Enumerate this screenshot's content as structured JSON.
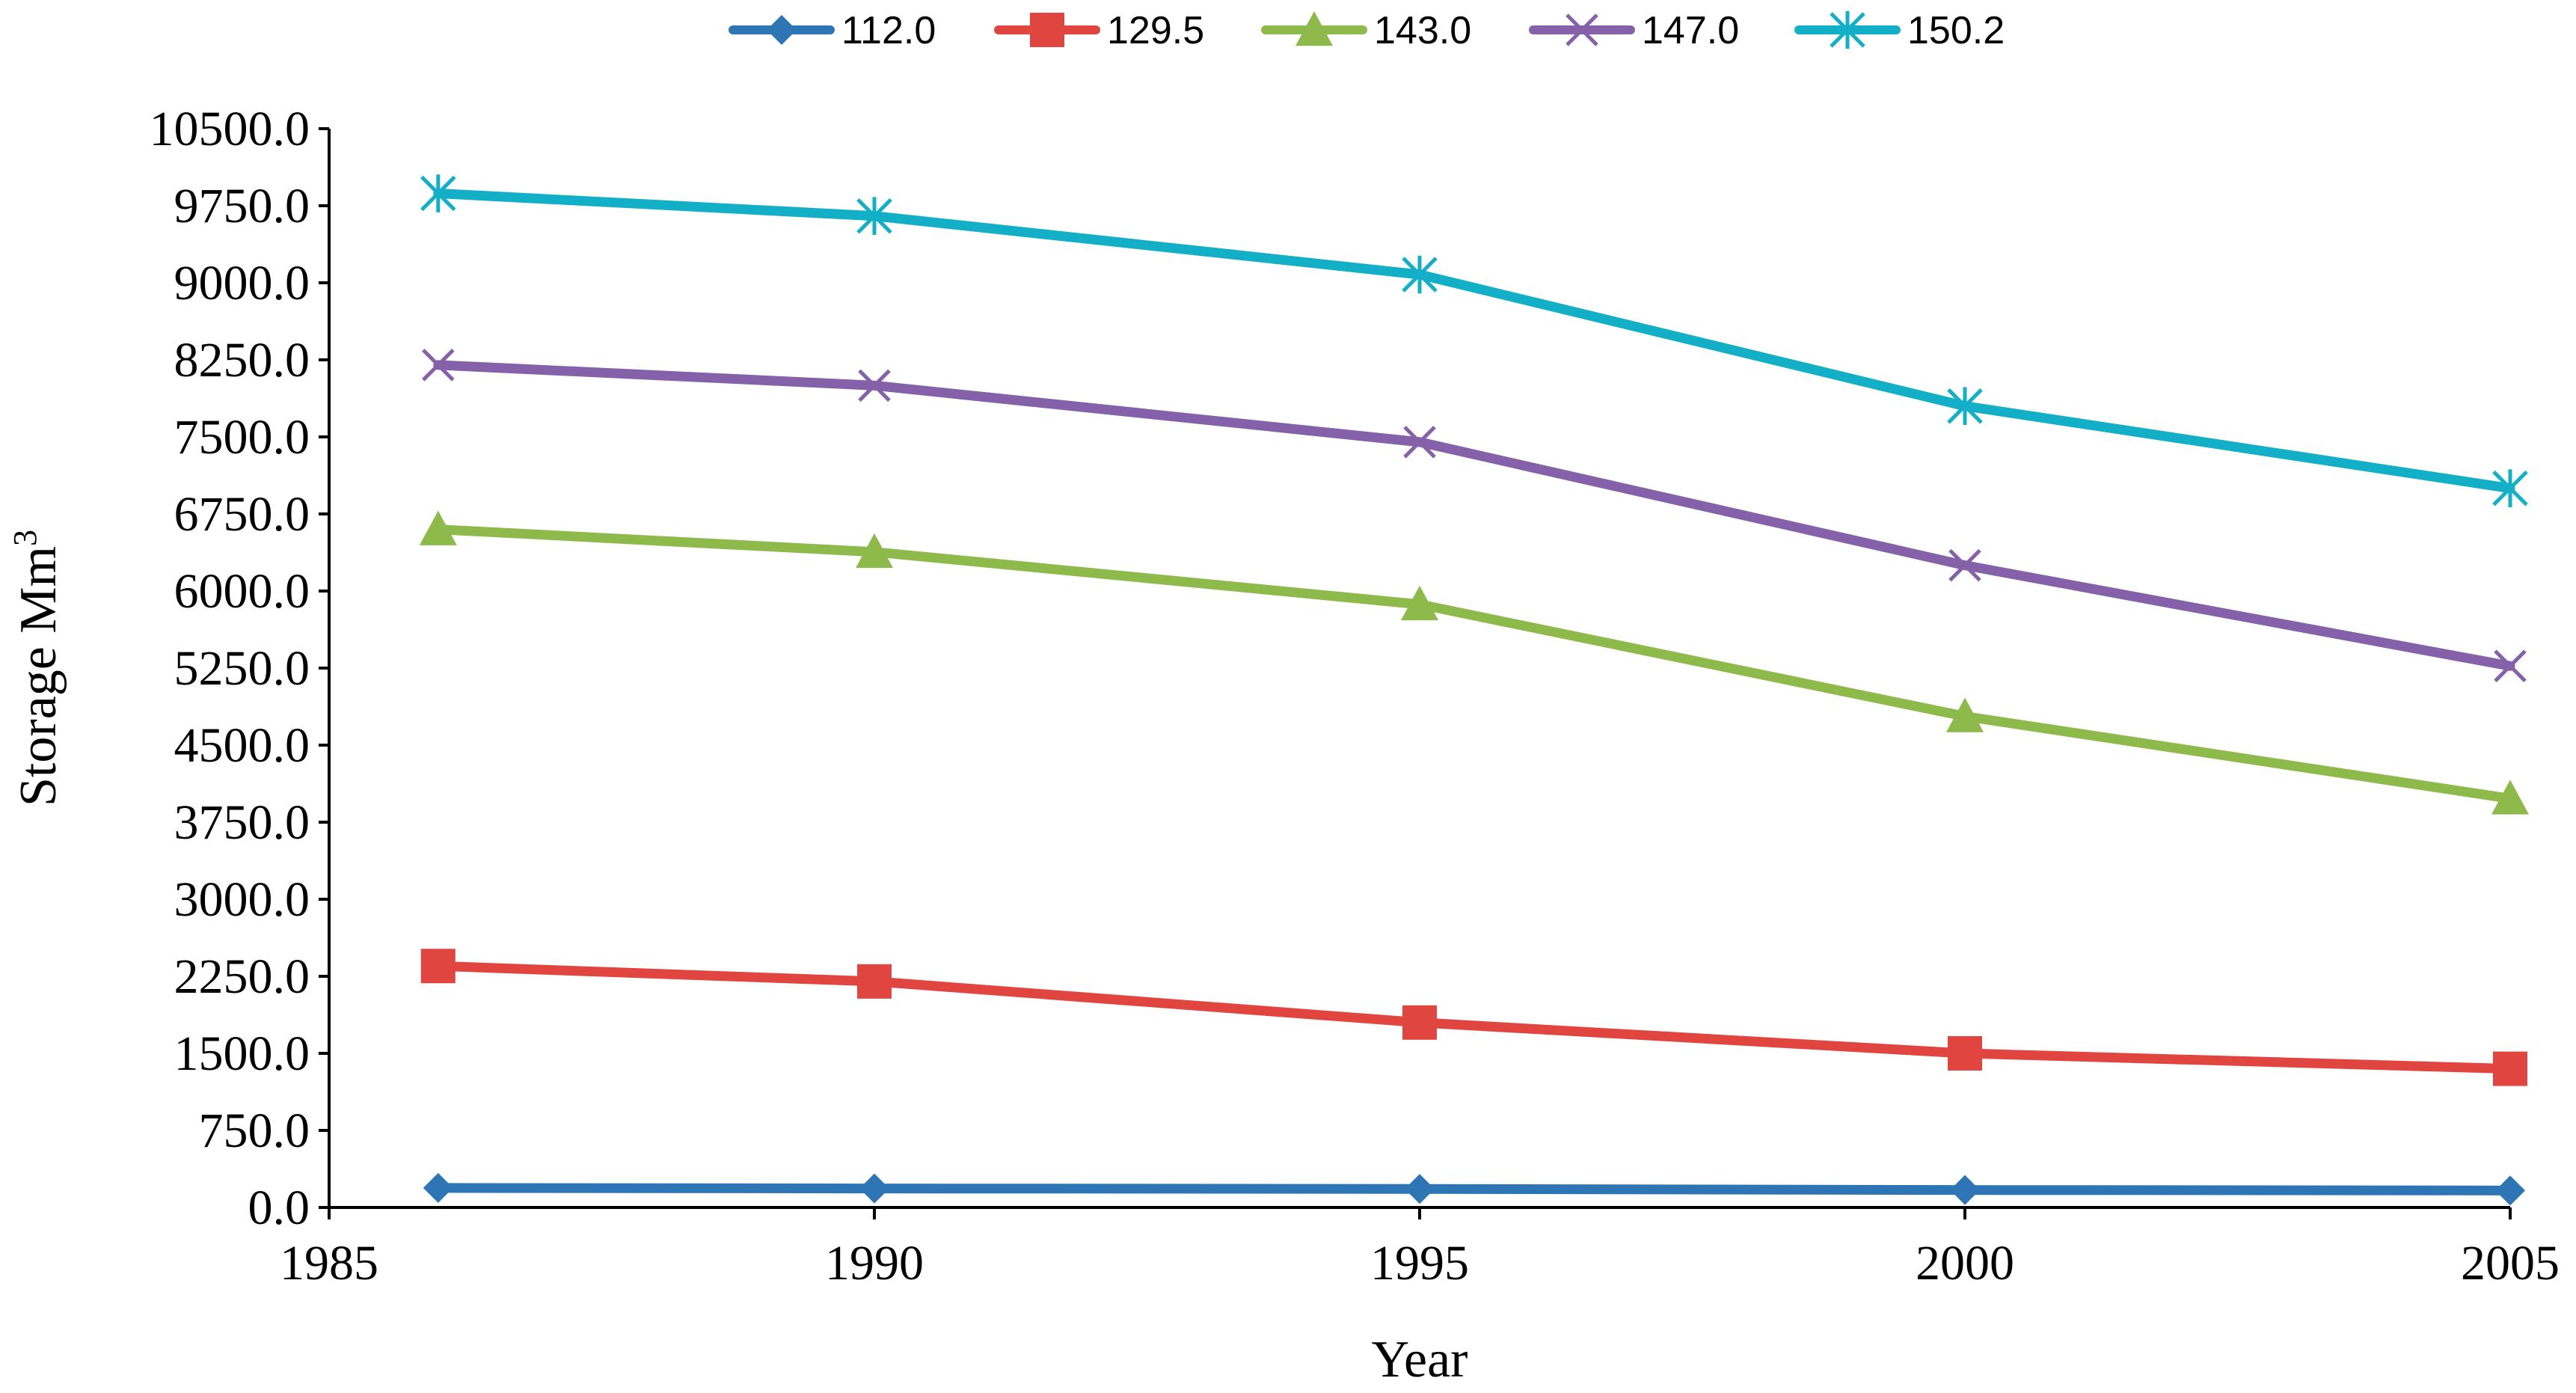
{
  "chart_data": {
    "type": "line",
    "title": "",
    "xlabel": "Year",
    "ylabel": "Storage Mm",
    "ylabel_superscript": "3",
    "xlim": [
      1985,
      2005
    ],
    "ylim": [
      0,
      10500
    ],
    "x_ticks": [
      1985,
      1990,
      1995,
      2000,
      2005
    ],
    "x_tick_labels": [
      "1985",
      "1990",
      "1995",
      "2000",
      "2005"
    ],
    "y_ticks": [
      0,
      750,
      1500,
      2250,
      3000,
      3750,
      4500,
      5250,
      6000,
      6750,
      7500,
      8250,
      9000,
      9750,
      10500
    ],
    "y_tick_labels": [
      "0.0",
      "750.0",
      "1500.0",
      "2250.0",
      "3000.0",
      "3750.0",
      "4500.0",
      "5250.0",
      "6000.0",
      "6750.0",
      "7500.0",
      "8250.0",
      "9000.0",
      "9750.0",
      "10500.0"
    ],
    "x": [
      1986,
      1990,
      1995,
      2000,
      2005
    ],
    "legend_position": "top-center",
    "grid": false,
    "series": [
      {
        "name": "112.0",
        "color": "#2E75B6",
        "marker": "diamond",
        "values": [
          190,
          185,
          180,
          170,
          165
        ]
      },
      {
        "name": "129.5",
        "color": "#E0453F",
        "marker": "square",
        "values": [
          2350,
          2200,
          1800,
          1500,
          1350
        ]
      },
      {
        "name": "143.0",
        "color": "#8DBA4A",
        "marker": "triangle",
        "values": [
          6600,
          6380,
          5870,
          4780,
          3980
        ]
      },
      {
        "name": "147.0",
        "color": "#8461A8",
        "marker": "x",
        "values": [
          8200,
          8000,
          7450,
          6250,
          5270
        ]
      },
      {
        "name": "150.2",
        "color": "#12AFC7",
        "marker": "star",
        "values": [
          9870,
          9650,
          9080,
          7800,
          7000
        ]
      }
    ]
  }
}
